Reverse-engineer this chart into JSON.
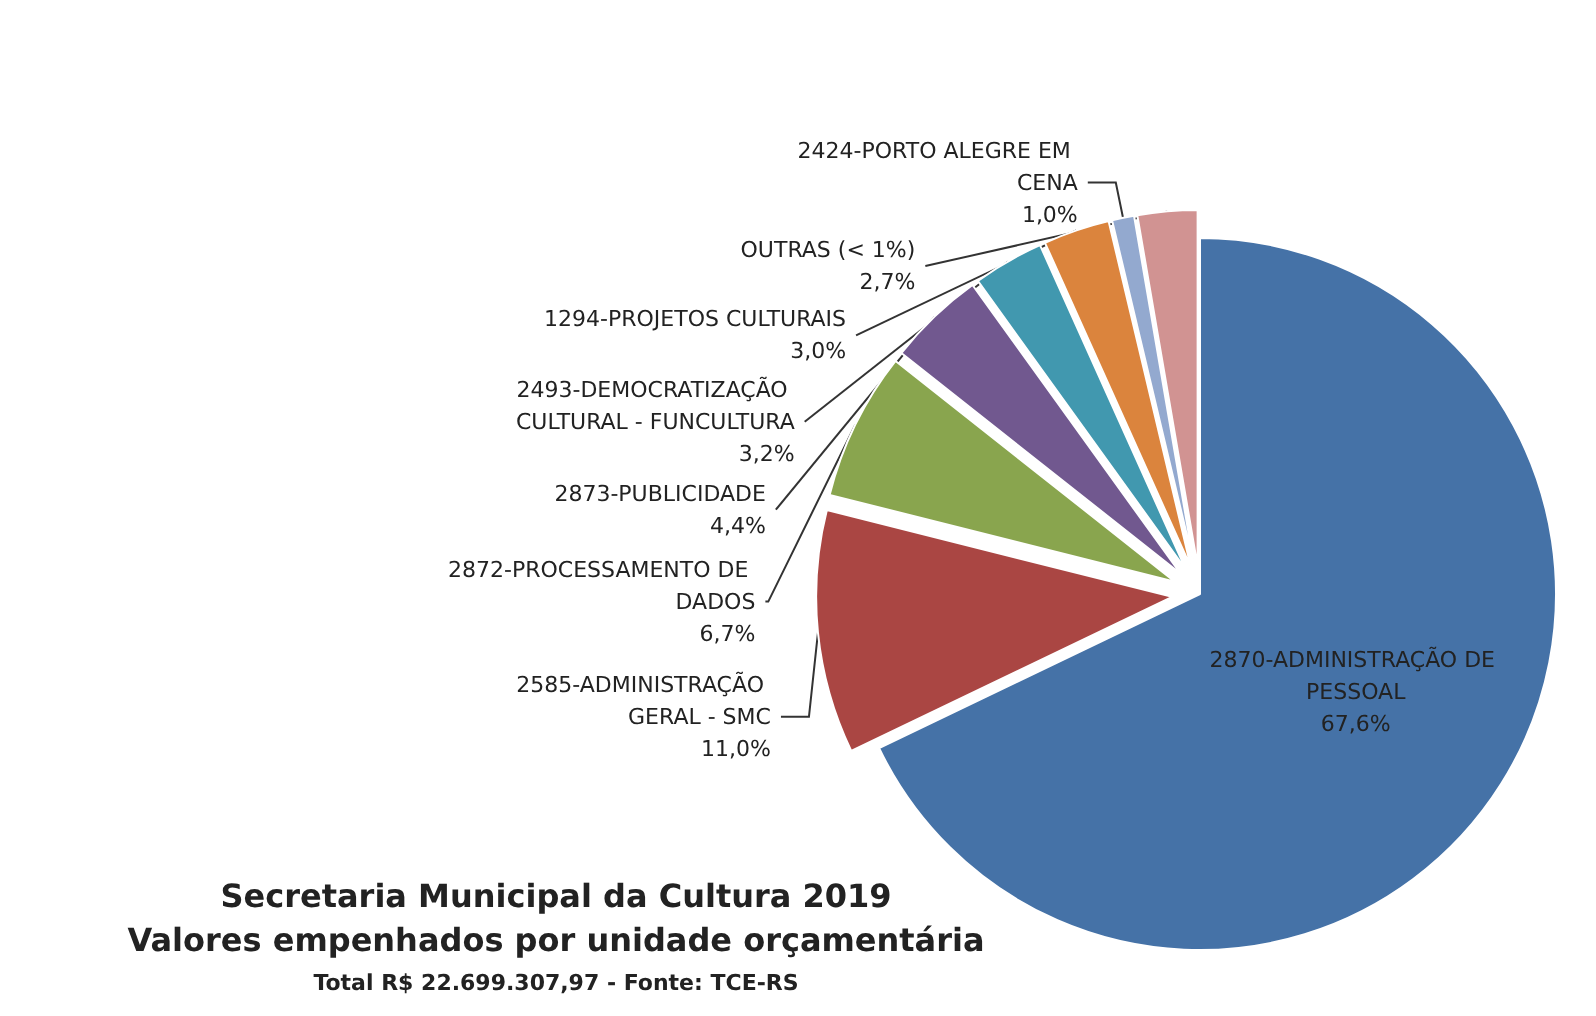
{
  "chart_data": {
    "type": "pie",
    "title": "Secretaria Municipal da Cultura 2019",
    "subtitle": "Valores empenhados por unidade orçamentária",
    "annotations": [
      "Total R$ 22.699.307,97 - Fonte: TCE-RS"
    ],
    "categories": [
      "2870-ADMINISTRAÇÃO DE PESSOAL",
      "2585-ADMINISTRAÇÃO GERAL - SMC",
      "2872-PROCESSAMENTO DE DADOS",
      "2873-PUBLICIDADE",
      "2493-DEMOCRATIZAÇÃO CULTURAL - FUNCULTURA",
      "1294-PROJETOS CULTURAIS",
      "2424-PORTO ALEGRE EM CENA",
      "OUTRAS (< 1%)"
    ],
    "values": [
      67.6,
      11.0,
      6.7,
      4.4,
      3.2,
      3.0,
      1.0,
      2.7
    ],
    "colors": [
      "#4572a7",
      "#aa4643",
      "#89a54e",
      "#71588f",
      "#4198af",
      "#db843d",
      "#93a9cf",
      "#d19392"
    ],
    "value_labels": [
      "67,6%",
      "11,0%",
      "6,7%",
      "4,4%",
      "3,2%",
      "3,0%",
      "1,0%",
      "2,7%"
    ],
    "legend": false
  }
}
